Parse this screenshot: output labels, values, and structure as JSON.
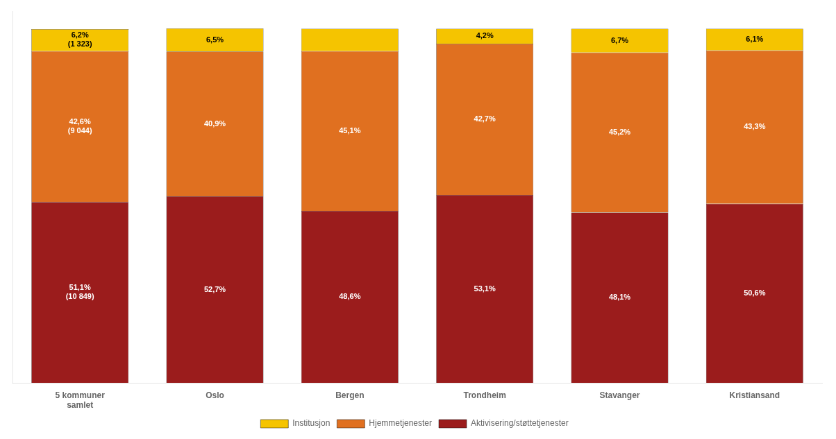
{
  "chart_data": {
    "type": "bar",
    "stacked": true,
    "categories": [
      "5 kommuner\nsamlet",
      "Oslo",
      "Bergen",
      "Trondheim",
      "Stavanger",
      "Kristiansand"
    ],
    "series": [
      {
        "name": "Aktivisering/støttetjenester",
        "color": "#9B1C1C",
        "values": [
          51.1,
          52.7,
          48.6,
          53.1,
          48.1,
          50.6
        ],
        "value_labels": [
          "51,1%\n(10 849)",
          "52,7%",
          "48,6%",
          "53,1%",
          "48,1%",
          "50,6%"
        ]
      },
      {
        "name": "Hjemmetjenester",
        "color": "#E07020",
        "values": [
          42.6,
          40.9,
          45.1,
          42.7,
          45.2,
          43.3
        ],
        "value_labels": [
          "42,6%\n(9 044)",
          "40,9%",
          "45,1%",
          "42,7%",
          "45,2%",
          "43,3%"
        ]
      },
      {
        "name": "Institusjon",
        "color": "#F5C400",
        "values": [
          6.2,
          6.5,
          6.3,
          4.2,
          6.7,
          6.1
        ],
        "value_labels": [
          "6,2%\n(1 323)",
          "6,5%",
          null,
          "4,2%",
          "6,7%",
          "6,1%"
        ]
      }
    ],
    "ylim": [
      0,
      105
    ],
    "tick_labels": "x",
    "grid": false,
    "legend": "bottom",
    "data_labels": true
  }
}
